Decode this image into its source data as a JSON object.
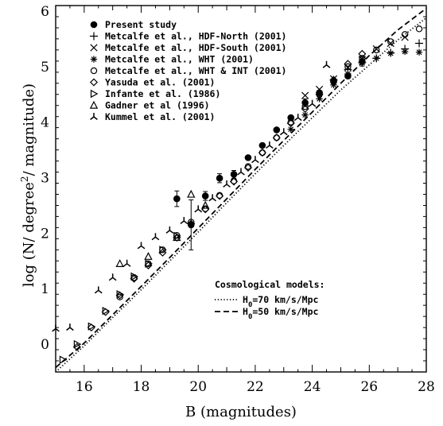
{
  "chart_data": {
    "type": "scatter",
    "xlabel": "B (magnitudes)",
    "ylabel": {
      "prefix": "log (N/ degree",
      "sup": "2",
      "suffix": "/ magnitude)"
    },
    "xlim": [
      15,
      28
    ],
    "ylim": [
      -0.5,
      6.1
    ],
    "xticks": [
      16,
      18,
      20,
      22,
      24,
      26,
      28
    ],
    "yticks": [
      0,
      1,
      2,
      3,
      4,
      5,
      6
    ],
    "grid": false,
    "legend_position": "top-left",
    "series": [
      {
        "name": "Present study",
        "marker": "filled-circle",
        "points": [
          [
            19.25,
            2.62
          ],
          [
            19.75,
            2.15
          ],
          [
            20.25,
            2.67
          ],
          [
            20.75,
            2.99
          ],
          [
            21.25,
            3.06
          ],
          [
            21.75,
            3.36
          ],
          [
            22.25,
            3.58
          ],
          [
            22.75,
            3.86
          ],
          [
            23.25,
            4.08
          ],
          [
            23.75,
            4.35
          ],
          [
            24.25,
            4.53
          ],
          [
            24.75,
            4.73
          ],
          [
            25.25,
            4.83
          ],
          [
            25.75,
            5.09
          ]
        ],
        "errors": [
          [
            19.25,
            0.14
          ],
          [
            19.75,
            0.45
          ],
          [
            20.25,
            0.08
          ],
          [
            20.75,
            0.08
          ],
          [
            21.25,
            0.07
          ],
          [
            23.75,
            0.07
          ],
          [
            25.75,
            0.08
          ]
        ]
      },
      {
        "name": "Metcalfe et al., HDF-North (2001)",
        "marker": "plus",
        "points": [
          [
            24.75,
            4.76
          ],
          [
            25.25,
            4.95
          ],
          [
            25.75,
            5.07
          ],
          [
            26.25,
            5.15
          ],
          [
            26.75,
            5.25
          ],
          [
            27.25,
            5.32
          ],
          [
            27.75,
            5.42
          ]
        ]
      },
      {
        "name": "Metcalfe et al., HDF-South (2001)",
        "marker": "cross",
        "points": [
          [
            23.75,
            4.48
          ],
          [
            24.25,
            4.59
          ],
          [
            24.75,
            4.78
          ],
          [
            25.25,
            4.98
          ],
          [
            25.75,
            5.13
          ],
          [
            26.25,
            5.32
          ],
          [
            26.75,
            5.42
          ],
          [
            27.25,
            5.53
          ]
        ]
      },
      {
        "name": "Metcalfe et al., WHT (2001)",
        "marker": "asterisk",
        "points": [
          [
            23.25,
            3.87
          ],
          [
            23.75,
            4.13
          ],
          [
            24.25,
            4.42
          ],
          [
            24.75,
            4.67
          ],
          [
            25.25,
            4.87
          ],
          [
            25.75,
            5.07
          ],
          [
            26.25,
            5.15
          ],
          [
            26.75,
            5.24
          ],
          [
            27.25,
            5.27
          ],
          [
            27.75,
            5.26
          ]
        ]
      },
      {
        "name": "Metcalfe et al., WHT & INT (2001)",
        "marker": "open-circle",
        "points": [
          [
            17.25,
            0.85
          ],
          [
            17.75,
            1.2
          ],
          [
            18.25,
            1.45
          ],
          [
            18.75,
            1.7
          ],
          [
            19.25,
            1.96
          ],
          [
            19.75,
            2.2
          ],
          [
            20.25,
            2.44
          ],
          [
            20.75,
            2.68
          ],
          [
            21.25,
            2.94
          ],
          [
            21.75,
            3.2
          ],
          [
            22.25,
            3.45
          ],
          [
            22.75,
            3.72
          ],
          [
            23.25,
            4.0
          ],
          [
            23.75,
            4.28
          ],
          [
            24.25,
            4.5
          ],
          [
            24.75,
            4.75
          ],
          [
            25.25,
            5.0
          ],
          [
            25.75,
            5.15
          ],
          [
            26.25,
            5.3
          ],
          [
            26.75,
            5.45
          ],
          [
            27.25,
            5.58
          ],
          [
            27.75,
            5.68
          ]
        ]
      },
      {
        "name": "Yasuda et al. (2001)",
        "marker": "open-diamond",
        "points": [
          [
            15.75,
            -0.05
          ],
          [
            16.25,
            0.3
          ],
          [
            16.75,
            0.58
          ],
          [
            17.25,
            0.88
          ],
          [
            17.75,
            1.18
          ],
          [
            18.25,
            1.42
          ],
          [
            18.75,
            1.65
          ],
          [
            19.25,
            1.92
          ],
          [
            19.75,
            2.17
          ],
          [
            20.25,
            2.43
          ],
          [
            20.75,
            2.67
          ],
          [
            21.25,
            2.93
          ],
          [
            21.75,
            3.18
          ],
          [
            22.25,
            3.45
          ],
          [
            22.75,
            3.72
          ],
          [
            23.25,
            3.98
          ],
          [
            23.75,
            4.24
          ],
          [
            24.25,
            4.5
          ],
          [
            24.75,
            4.76
          ],
          [
            25.25,
            5.05
          ],
          [
            25.75,
            5.23
          ]
        ]
      },
      {
        "name": "Infante et al. (1986)",
        "marker": "open-triangle-right",
        "points": [
          [
            15.25,
            -0.28
          ],
          [
            15.75,
            0.0
          ],
          [
            16.25,
            0.32
          ],
          [
            16.75,
            0.6
          ],
          [
            17.25,
            0.9
          ],
          [
            17.75,
            1.22
          ],
          [
            18.25,
            1.45
          ],
          [
            18.75,
            1.7
          ],
          [
            19.25,
            1.95
          ]
        ]
      },
      {
        "name": "Gadner et al (1996)",
        "marker": "open-triangle-up",
        "points": [
          [
            17.25,
            1.45
          ],
          [
            18.25,
            1.58
          ],
          [
            19.25,
            1.92
          ],
          [
            19.75,
            2.7
          ],
          [
            20.25,
            2.5
          ]
        ]
      },
      {
        "name": "Kummel et al. (2001)",
        "marker": "tripod",
        "points": [
          [
            15.0,
            0.28
          ],
          [
            15.5,
            0.3
          ],
          [
            16.5,
            0.97
          ],
          [
            17.0,
            1.2
          ],
          [
            17.5,
            1.45
          ],
          [
            18.0,
            1.77
          ],
          [
            18.5,
            1.93
          ],
          [
            19.0,
            2.05
          ],
          [
            19.5,
            2.22
          ],
          [
            20.0,
            2.43
          ],
          [
            20.5,
            2.63
          ],
          [
            21.0,
            2.88
          ],
          [
            21.5,
            3.1
          ],
          [
            22.0,
            3.32
          ],
          [
            22.5,
            3.58
          ],
          [
            23.0,
            3.82
          ],
          [
            23.5,
            4.08
          ],
          [
            24.0,
            4.33
          ],
          [
            24.5,
            5.03
          ]
        ]
      }
    ],
    "models": {
      "title": "Cosmological models:",
      "lines": [
        {
          "label": "H",
          "sub": "0",
          "rest": "=70 km/s/Mpc",
          "style": "dotted",
          "points": [
            [
              15.0,
              -0.5
            ],
            [
              16.0,
              -0.03
            ],
            [
              17.0,
              0.48
            ],
            [
              18.0,
              0.98
            ],
            [
              19.0,
              1.5
            ],
            [
              20.0,
              2.02
            ],
            [
              21.0,
              2.55
            ],
            [
              22.0,
              3.07
            ],
            [
              23.0,
              3.58
            ],
            [
              24.0,
              4.08
            ],
            [
              25.0,
              4.58
            ],
            [
              26.0,
              5.03
            ],
            [
              27.0,
              5.48
            ],
            [
              28.0,
              5.88
            ]
          ]
        },
        {
          "label": "H",
          "sub": "0",
          "rest": "=50 km/s/Mpc",
          "style": "dashed",
          "points": [
            [
              15.0,
              -0.42
            ],
            [
              16.0,
              0.02
            ],
            [
              17.0,
              0.53
            ],
            [
              18.0,
              1.04
            ],
            [
              19.0,
              1.56
            ],
            [
              20.0,
              2.09
            ],
            [
              21.0,
              2.62
            ],
            [
              22.0,
              3.15
            ],
            [
              23.0,
              3.67
            ],
            [
              24.0,
              4.18
            ],
            [
              25.0,
              4.7
            ],
            [
              26.0,
              5.2
            ],
            [
              27.0,
              5.66
            ],
            [
              28.0,
              6.05
            ]
          ]
        }
      ]
    }
  }
}
